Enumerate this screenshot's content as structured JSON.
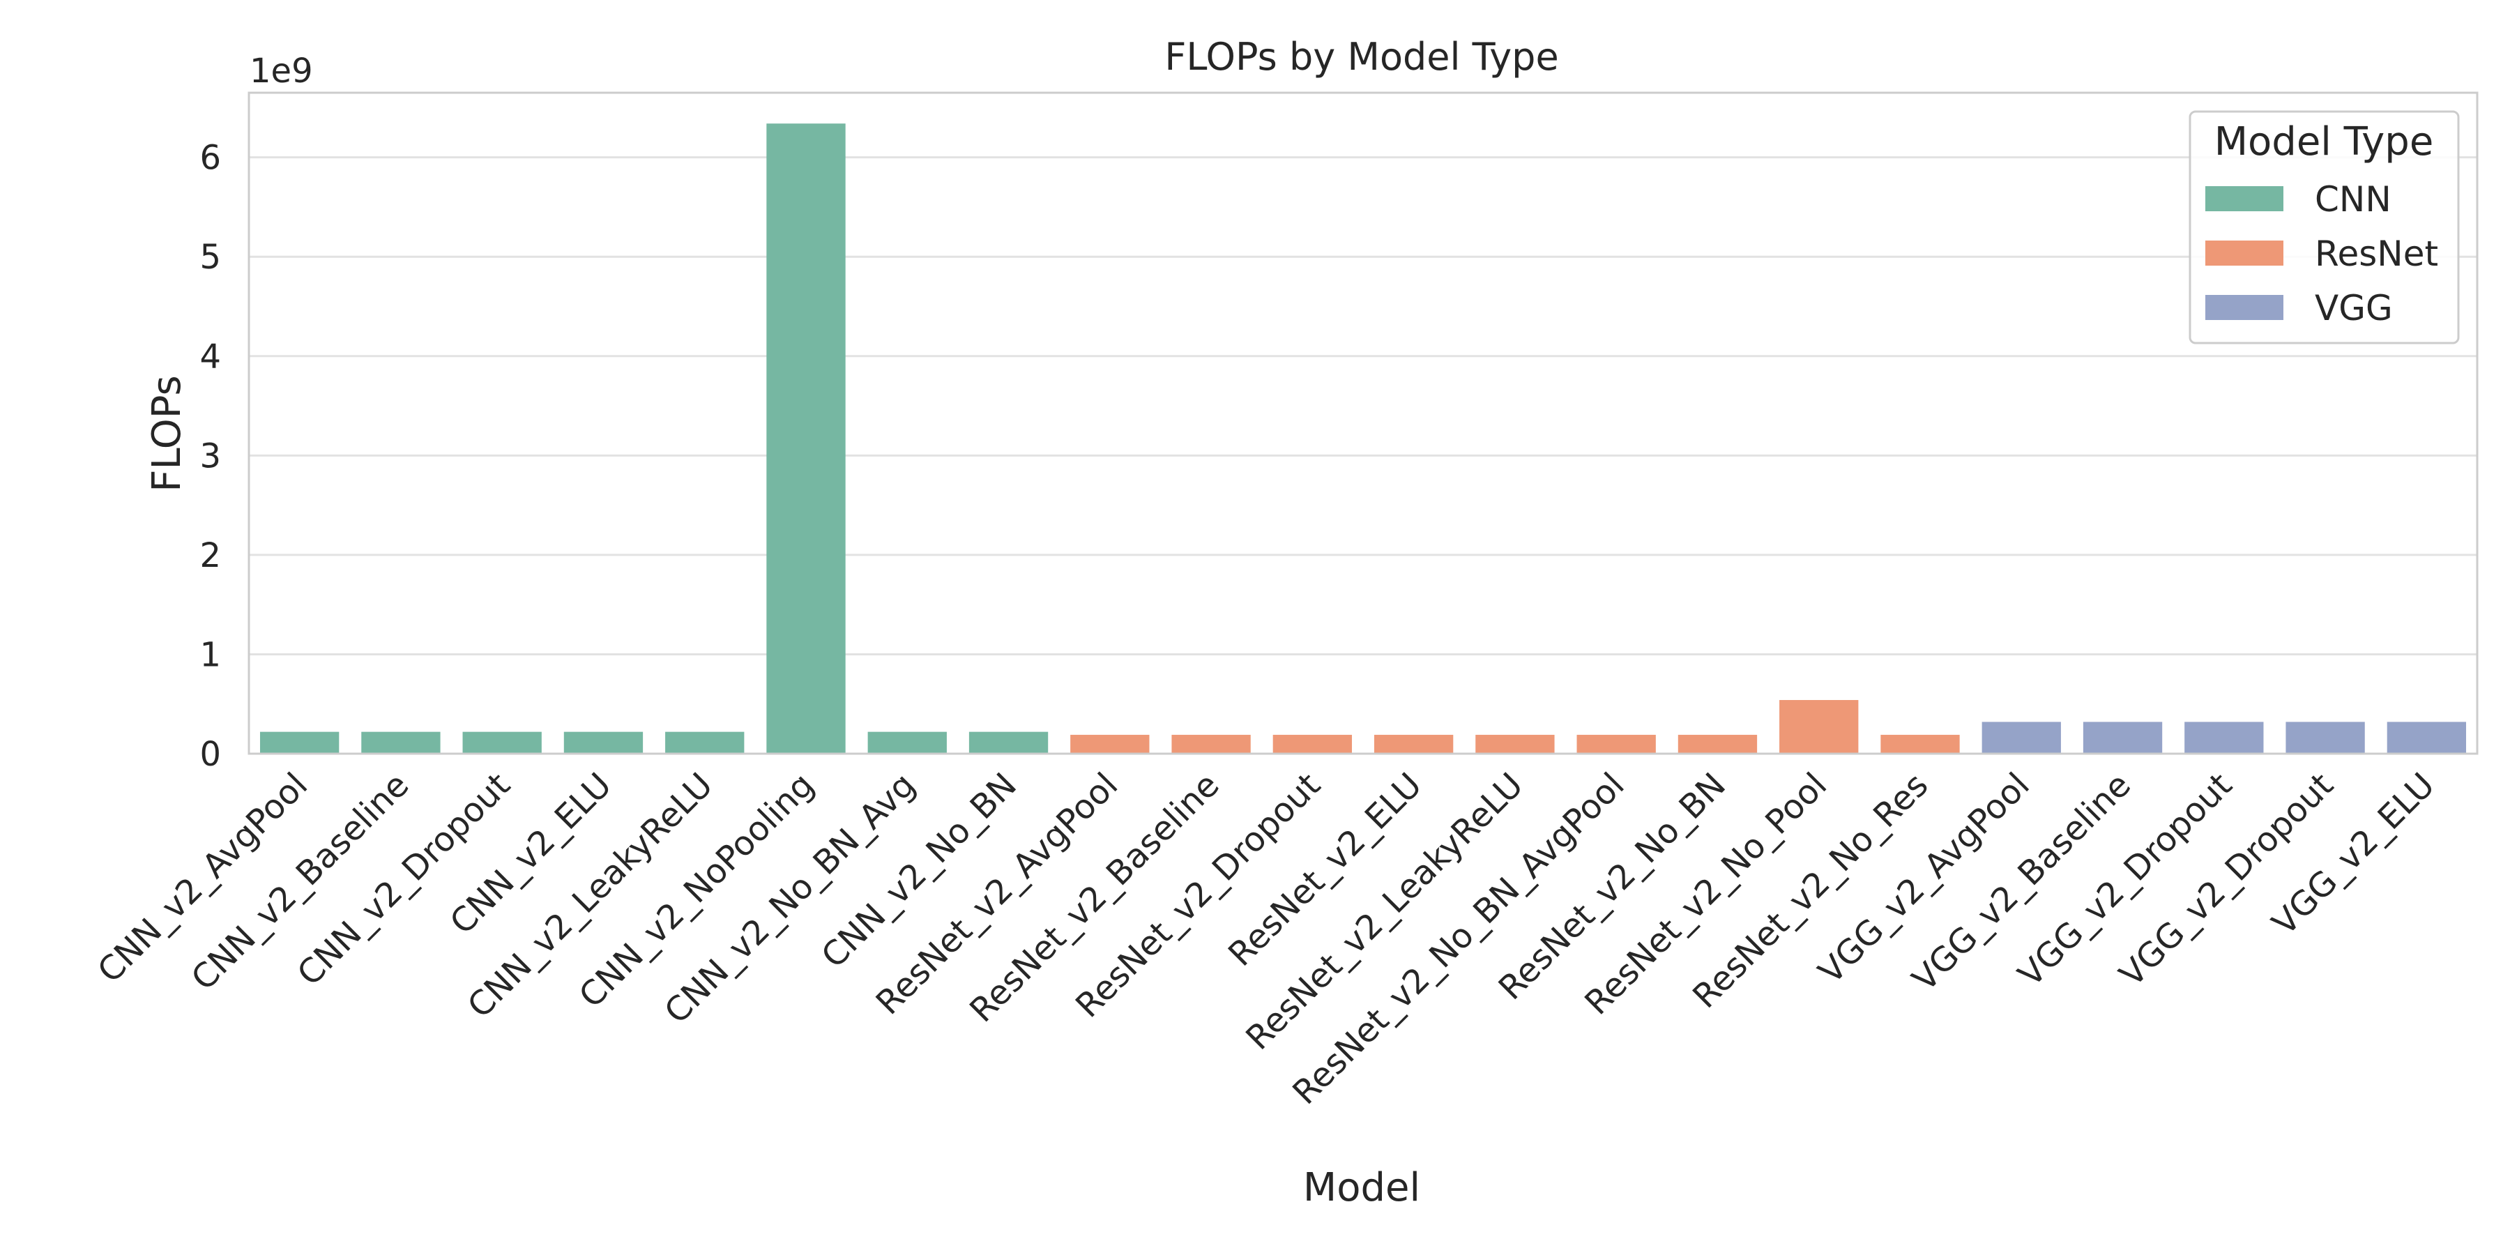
{
  "chart_data": {
    "type": "bar",
    "title": "FLOPs by Model Type",
    "xlabel": "Model",
    "ylabel": "FLOPs",
    "y_offset_label": "1e9",
    "ylim": [
      0,
      6.65
    ],
    "yticks": [
      0,
      1,
      2,
      3,
      4,
      5,
      6
    ],
    "grid": "y",
    "legend": {
      "title": "Model Type",
      "placement": "top-right"
    },
    "series": [
      {
        "name": "CNN",
        "color": "#76b7a2"
      },
      {
        "name": "ResNet",
        "color": "#ee9876"
      },
      {
        "name": "VGG",
        "color": "#95a3c8"
      }
    ],
    "categories": [
      "CNN_v2_AvgPool",
      "CNN_v2_Baseline",
      "CNN_v2_Dropout",
      "CNN_v2_ELU",
      "CNN_v2_LeakyReLU",
      "CNN_v2_NoPooling",
      "CNN_v2_No_BN_Avg",
      "CNN_v2_No_BN",
      "ResNet_v2_AvgPool",
      "ResNet_v2_Baseline",
      "ResNet_v2_Dropout",
      "ResNet_v2_ELU",
      "ResNet_v2_LeakyReLU",
      "ResNet_v2_No_BN_AvgPool",
      "ResNet_v2_No_BN",
      "ResNet_v2_No_Pool",
      "ResNet_v2_No_Res",
      "VGG_v2_AvgPool",
      "VGG_v2_Baseline",
      "VGG_v2_Dropout",
      "VGG_v2_Dropout",
      "VGG_v2_ELU"
    ],
    "values": [
      0.22,
      0.22,
      0.22,
      0.22,
      0.22,
      6.34,
      0.22,
      0.22,
      0.19,
      0.19,
      0.19,
      0.19,
      0.19,
      0.19,
      0.19,
      0.54,
      0.19,
      0.32,
      0.32,
      0.32,
      0.32,
      0.32
    ],
    "model_type": [
      "CNN",
      "CNN",
      "CNN",
      "CNN",
      "CNN",
      "CNN",
      "CNN",
      "CNN",
      "ResNet",
      "ResNet",
      "ResNet",
      "ResNet",
      "ResNet",
      "ResNet",
      "ResNet",
      "ResNet",
      "ResNet",
      "VGG",
      "VGG",
      "VGG",
      "VGG",
      "VGG"
    ]
  }
}
